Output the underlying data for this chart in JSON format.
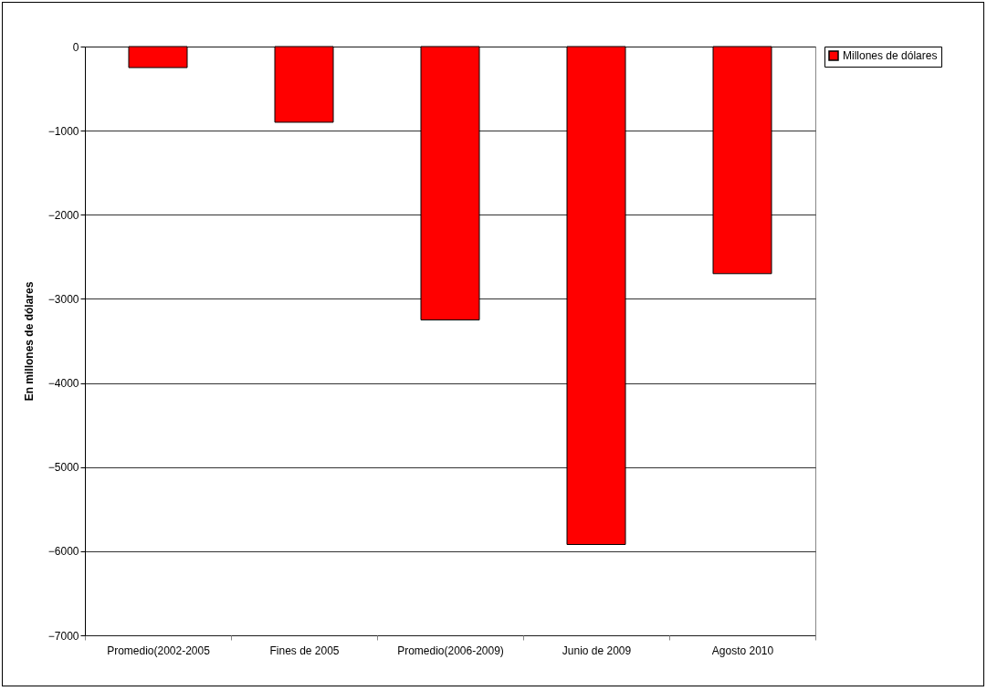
{
  "chart_data": {
    "type": "bar",
    "ylabel": "En millones de dólares",
    "categories": [
      "Promedio(2002-2005",
      "Fines de 2005",
      "Promedio(2006-2009)",
      "Junio de 2009",
      "Agosto 2010"
    ],
    "series": [
      {
        "name": "Millones de dólares",
        "color": "#ff0000",
        "values": [
          -250,
          -900,
          -3250,
          -5920,
          -2700
        ]
      }
    ],
    "ylim": [
      -7000,
      0
    ],
    "yticks": [
      -7000,
      -6000,
      -5000,
      -4000,
      -3000,
      -2000,
      -1000,
      0
    ],
    "grid": "y",
    "legend": "right"
  }
}
